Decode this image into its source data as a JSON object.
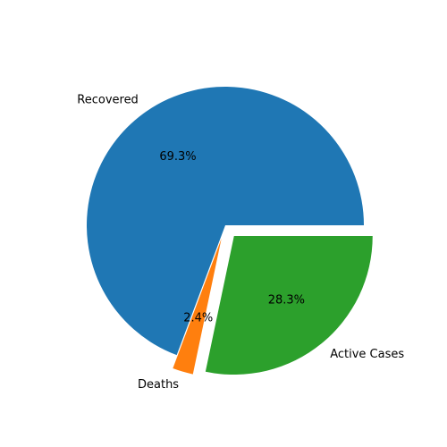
{
  "chart_data": {
    "type": "pie",
    "title": "",
    "slices": [
      {
        "label": "Recovered",
        "value": 69.3,
        "pct_label": "69.3%",
        "color": "#1f77b4",
        "explode": 0.0
      },
      {
        "label": "Deaths",
        "value": 2.4,
        "pct_label": "2.4%",
        "color": "#ff7f0e",
        "explode": 0.1
      },
      {
        "label": "Active Cases",
        "value": 28.3,
        "pct_label": "28.3%",
        "color": "#2ca02c",
        "explode": 0.1
      }
    ],
    "start_angle_deg": 0,
    "direction": "counterclockwise",
    "legend": false
  }
}
